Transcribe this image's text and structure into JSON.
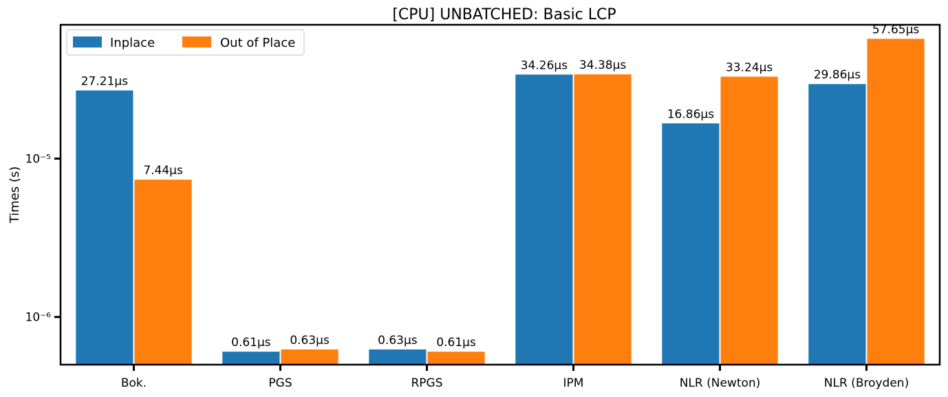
{
  "chart_data": {
    "type": "bar",
    "title": "[CPU] UNBATCHED: Basic LCP",
    "xlabel": "",
    "ylabel": "Times (s)",
    "y_scale": "log",
    "ylim": [
      5e-07,
      7e-05
    ],
    "y_ticks": [
      {
        "value": 1e-05,
        "label": "10⁻⁵"
      },
      {
        "value": 1e-06,
        "label": "10⁻⁶"
      }
    ],
    "categories": [
      "Bok.",
      "PGS",
      "RPGS",
      "IPM",
      "NLR (Newton)",
      "NLR (Broyden)"
    ],
    "series": [
      {
        "name": "Inplace",
        "color": "#1f77b4",
        "values": [
          2.721e-05,
          6.1e-07,
          6.3e-07,
          3.426e-05,
          1.686e-05,
          2.986e-05
        ],
        "labels": [
          "27.21μs",
          "0.61μs",
          "0.63μs",
          "34.26μs",
          "16.86μs",
          "29.86μs"
        ]
      },
      {
        "name": "Out of Place",
        "color": "#ff7f0e",
        "values": [
          7.44e-06,
          6.3e-07,
          6.1e-07,
          3.438e-05,
          3.324e-05,
          5.765e-05
        ],
        "labels": [
          "7.44μs",
          "0.63μs",
          "0.61μs",
          "34.38μs",
          "33.24μs",
          "57.65μs"
        ]
      }
    ],
    "legend_position": "top-left",
    "grid": false
  }
}
